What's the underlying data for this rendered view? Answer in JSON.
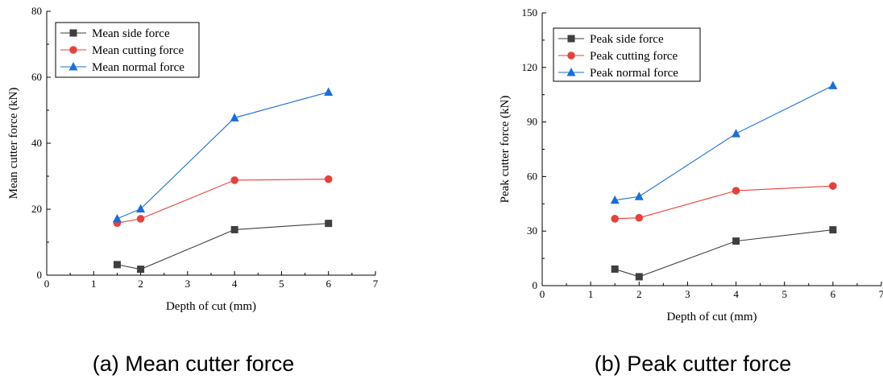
{
  "chart_data": [
    {
      "type": "line",
      "caption": "(a) Mean cutter force",
      "xlabel": "Depth of cut (mm)",
      "ylabel": "Mean cutter force (kN)",
      "xlim": [
        0,
        7
      ],
      "ylim": [
        0,
        80
      ],
      "xticks": [
        0,
        1,
        2,
        3,
        4,
        5,
        6,
        7
      ],
      "yticks": [
        0,
        20,
        40,
        60,
        80
      ],
      "grid": false,
      "legend_position": "top-left",
      "x": [
        1.5,
        2,
        4,
        6
      ],
      "series": [
        {
          "name": "Mean side force",
          "color": "#3f3f3f",
          "marker": "square",
          "values": [
            3.2,
            1.8,
            13.8,
            15.7
          ]
        },
        {
          "name": "Mean cutting force",
          "color": "#e8413b",
          "marker": "circle",
          "values": [
            15.8,
            17.1,
            28.8,
            29.1
          ]
        },
        {
          "name": "Mean normal force",
          "color": "#1a6fd6",
          "marker": "triangle",
          "values": [
            17.1,
            20.1,
            47.7,
            55.5
          ]
        }
      ]
    },
    {
      "type": "line",
      "caption": "(b) Peak cutter force",
      "xlabel": "Depth of cut (mm)",
      "ylabel": "Peak cutter force (kN)",
      "xlim": [
        0,
        7
      ],
      "ylim": [
        0,
        150
      ],
      "xticks": [
        0,
        1,
        2,
        3,
        4,
        5,
        6,
        7
      ],
      "yticks": [
        0,
        30,
        60,
        90,
        120,
        150
      ],
      "grid": false,
      "legend_position": "top-left",
      "x": [
        1.5,
        2,
        4,
        6
      ],
      "series": [
        {
          "name": "Peak side force",
          "color": "#3f3f3f",
          "marker": "square",
          "values": [
            9.1,
            4.9,
            24.5,
            30.7
          ]
        },
        {
          "name": "Peak cutting force",
          "color": "#e8413b",
          "marker": "circle",
          "values": [
            36.8,
            37.3,
            52.2,
            54.8
          ]
        },
        {
          "name": "Peak normal force",
          "color": "#1a6fd6",
          "marker": "triangle",
          "values": [
            47.0,
            49.0,
            83.6,
            110.0
          ]
        }
      ]
    }
  ]
}
